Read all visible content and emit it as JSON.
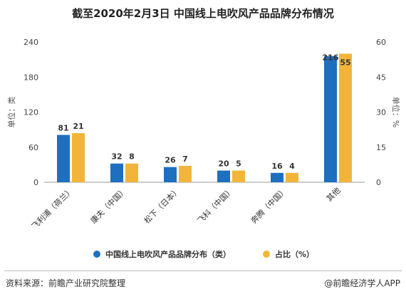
{
  "chart_data": {
    "type": "bar",
    "title": "截至2020年2月3日 中国线上电吹风产品品牌分布情况",
    "categories": [
      "飞利浦（荷兰）",
      "康夫（中国）",
      "松下（日本）",
      "飞科（中国）",
      "奔腾（中国）",
      "其他"
    ],
    "series": [
      {
        "name": "中国线上电吹风产品品牌分布（类）",
        "values": [
          81,
          32,
          26,
          20,
          16,
          216
        ],
        "axis": "left",
        "color": "#1f6fbf"
      },
      {
        "name": "占比（%）",
        "values": [
          21,
          8,
          7,
          5,
          4,
          55
        ],
        "axis": "right",
        "color": "#f2b53a"
      }
    ],
    "ylabel": "单位：类",
    "ylabel_right": "单位：%",
    "ylim": [
      0,
      240
    ],
    "yticks": [
      "0",
      "60",
      "120",
      "180",
      "240"
    ],
    "ylim_right": [
      0,
      60
    ],
    "yticks_right": [
      "0",
      "15",
      "30",
      "45",
      "60"
    ],
    "grid": false,
    "legend_position": "bottom"
  },
  "footer": {
    "source": "资料来源：前瞻产业研究院整理",
    "brand": "@前瞻经济学人APP"
  }
}
